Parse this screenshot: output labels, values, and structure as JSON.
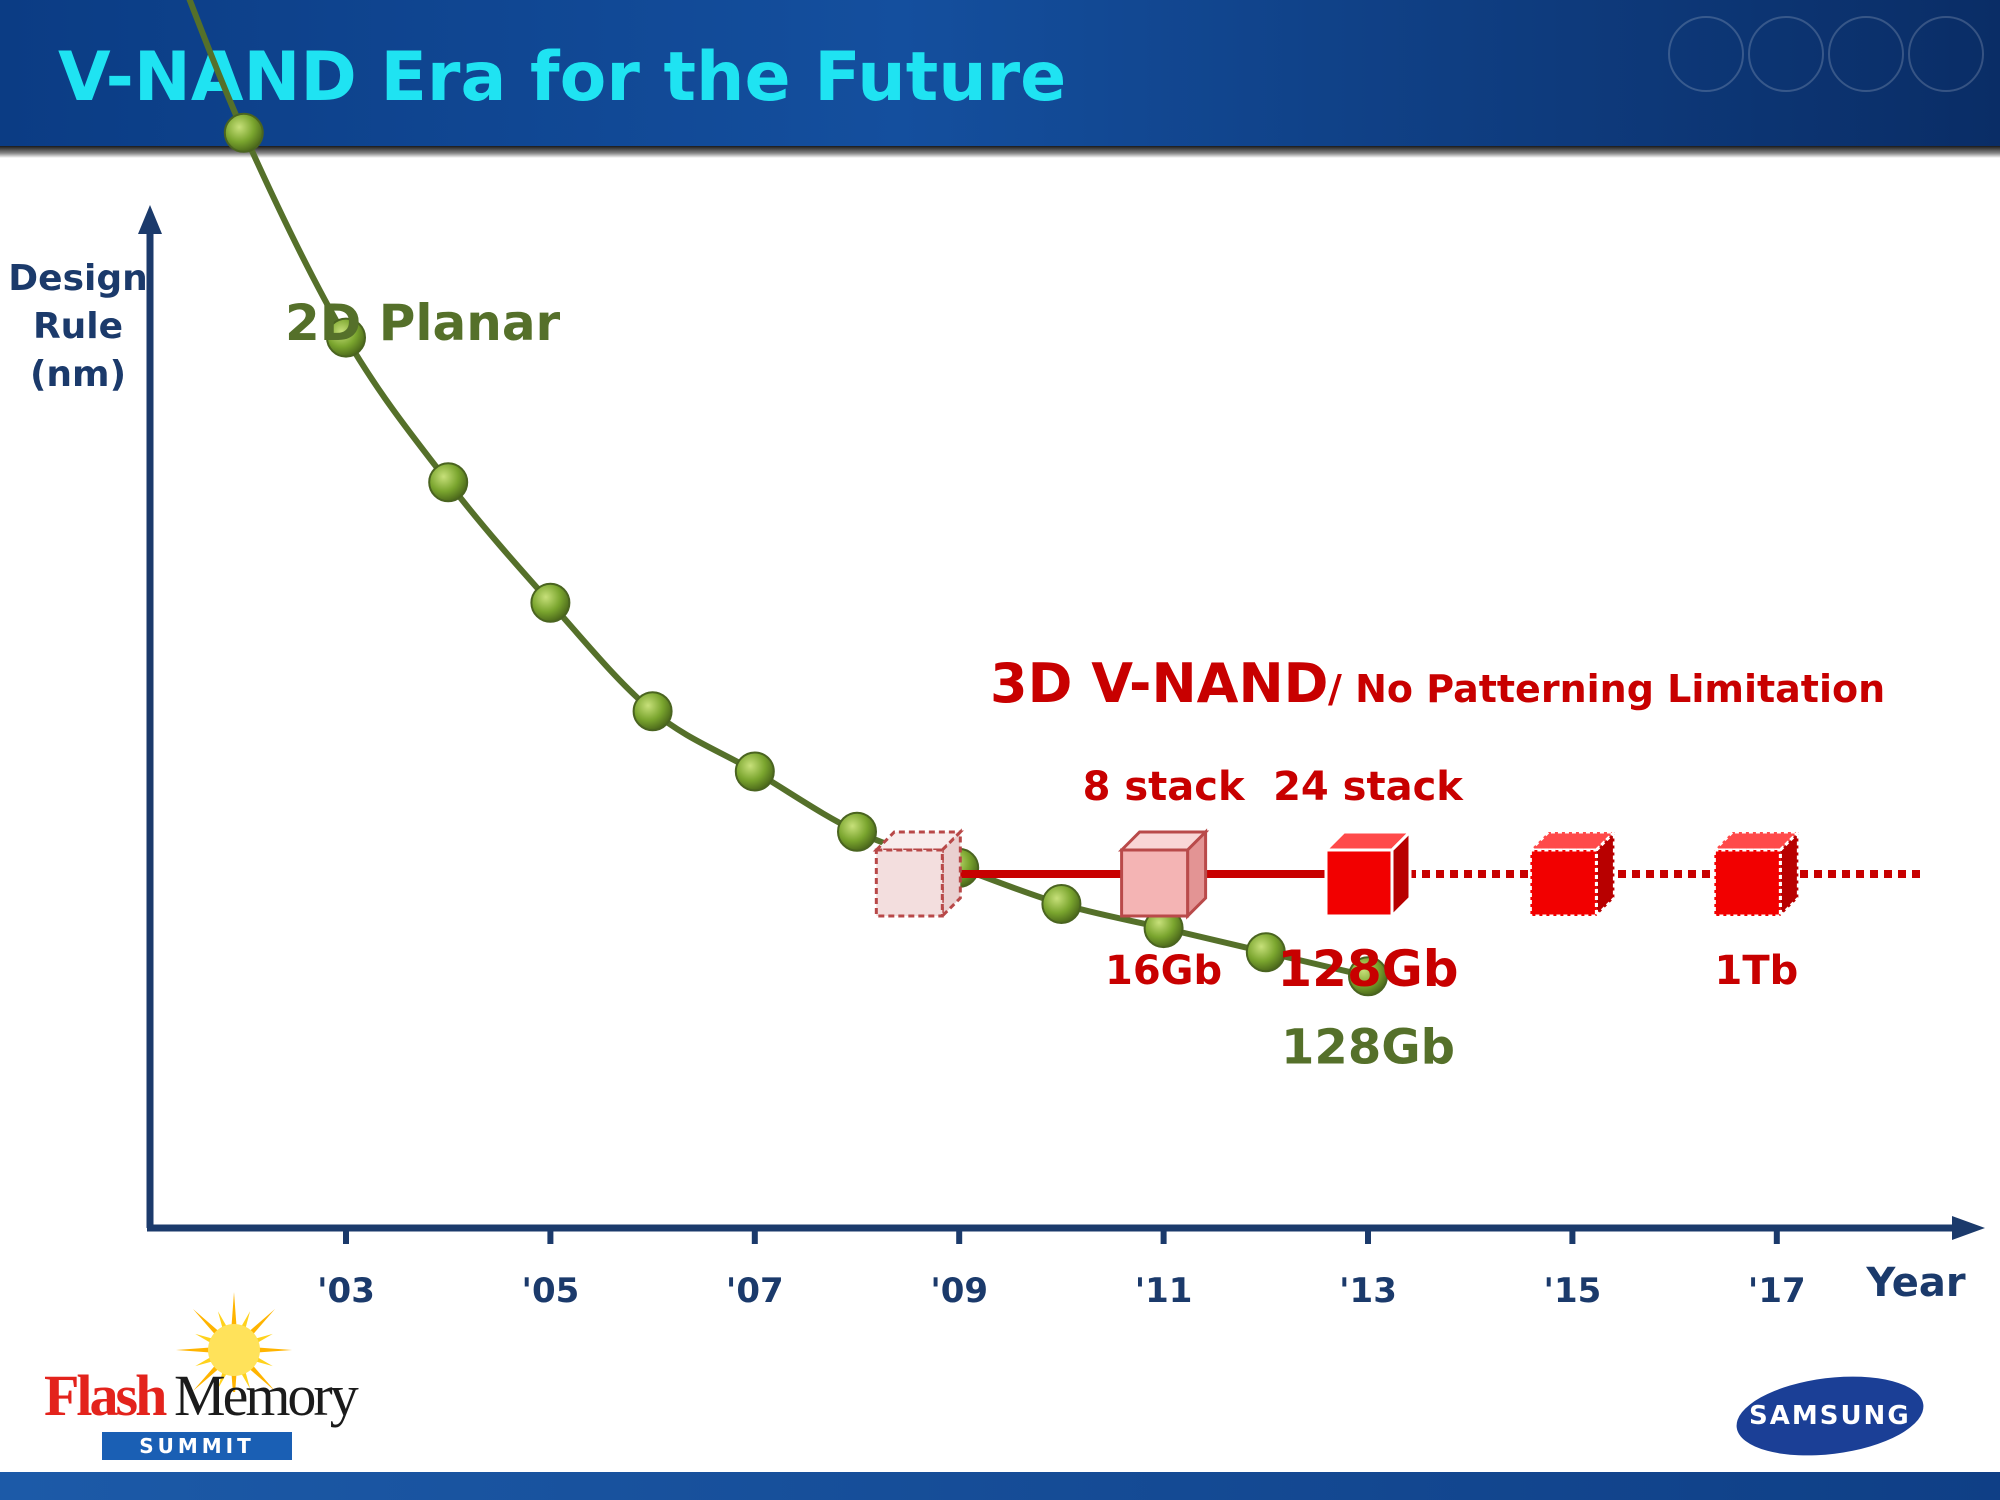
{
  "title": "V-NAND Era for the Future",
  "chart_data": {
    "type": "line",
    "ylabel": [
      "Design",
      "Rule",
      "(nm)"
    ],
    "xlabel": "Year",
    "x_ticks": [
      "'03",
      "'05",
      "'07",
      "'09",
      "'11",
      "'13",
      "'15",
      "'17"
    ],
    "series": [
      {
        "name": "2D Planar",
        "color": "#55702a",
        "marker_color": "#7aa52e",
        "x": [
          2002,
          2003,
          2004,
          2005,
          2006,
          2007,
          2008,
          2009,
          2010,
          2011,
          2012,
          2013
        ],
        "y": [
          84,
          67,
          55,
          45,
          36,
          31,
          26,
          23,
          20,
          18,
          16,
          14
        ],
        "end_label": "128Gb"
      }
    ],
    "v_nand": {
      "label": "3D V-NAND",
      "sublabel": "/ No Patterning Limitation",
      "color": "#c80000",
      "milestones": [
        {
          "x": 2008.6,
          "stack": "",
          "capacity": "",
          "style": "outline"
        },
        {
          "x": 2011.0,
          "stack": "8 stack",
          "capacity": "16Gb",
          "style": "light"
        },
        {
          "x": 2013.0,
          "stack": "24 stack",
          "capacity": "128Gb",
          "style": "solid"
        },
        {
          "x": 2015.0,
          "stack": "",
          "capacity": "",
          "style": "solid"
        },
        {
          "x": 2016.8,
          "stack": "",
          "capacity": "1Tb",
          "style": "solid"
        }
      ]
    }
  },
  "logos": {
    "fms_flash": "Flash",
    "fms_memory": "Memory",
    "fms_summit": "SUMMIT",
    "samsung": "SAMSUNG"
  }
}
